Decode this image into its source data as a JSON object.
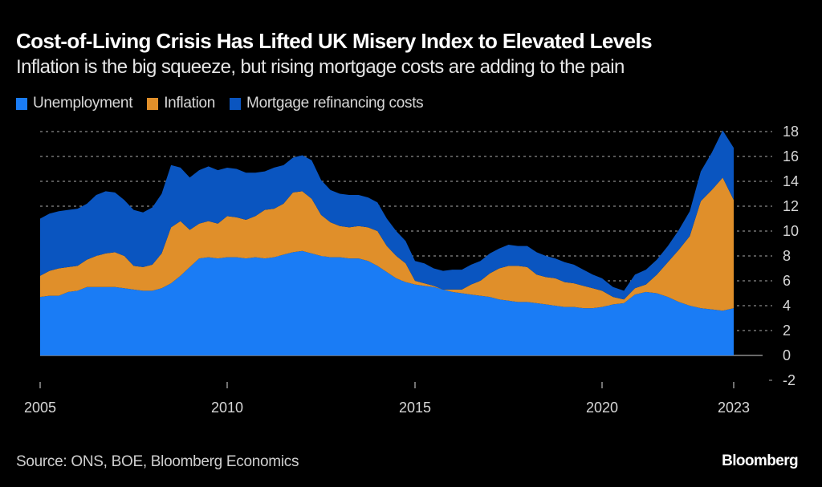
{
  "header": {
    "title": "Cost-of-Living Crisis Has Lifted UK Misery Index to Elevated Levels",
    "subtitle": "Inflation is the big squeeze, but rising mortgage costs are adding to the pain"
  },
  "legend": [
    {
      "label": "Unemployment",
      "color": "#1a7cf5"
    },
    {
      "label": "Inflation",
      "color": "#e08f2a"
    },
    {
      "label": "Mortgage refinancing costs",
      "color": "#0a55c0"
    }
  ],
  "footer": {
    "source": "Source: ONS, BOE, Bloomberg Economics",
    "brand": "Bloomberg"
  },
  "chart_data": {
    "type": "area",
    "stacked": true,
    "title": "Cost-of-Living Crisis Has Lifted UK Misery Index to Elevated Levels",
    "subtitle": "Inflation is the big squeeze, but rising mortgage costs are adding to the pain",
    "xlabel": "",
    "ylabel": "",
    "x_ticks": [
      "2005",
      "2010",
      "2015",
      "2020",
      "2023"
    ],
    "y_ticks": [
      "18",
      "16",
      "14",
      "12",
      "10",
      "8",
      "6",
      "4",
      "2",
      "0",
      "-2"
    ],
    "ylim": [
      -2,
      19
    ],
    "y_axis_side": "right",
    "grid": "horizontal dotted",
    "legend_position": "top-left",
    "x": [
      2005.0,
      2005.25,
      2005.5,
      2005.75,
      2006.0,
      2006.25,
      2006.5,
      2006.75,
      2007.0,
      2007.25,
      2007.5,
      2007.75,
      2008.0,
      2008.25,
      2008.5,
      2008.75,
      2009.0,
      2009.25,
      2009.5,
      2009.75,
      2010.0,
      2010.25,
      2010.5,
      2010.75,
      2011.0,
      2011.25,
      2011.5,
      2011.75,
      2012.0,
      2012.25,
      2012.5,
      2012.75,
      2013.0,
      2013.25,
      2013.5,
      2013.75,
      2014.0,
      2014.25,
      2014.5,
      2014.75,
      2015.0,
      2015.25,
      2015.5,
      2015.75,
      2016.0,
      2016.25,
      2016.5,
      2016.75,
      2017.0,
      2017.25,
      2017.5,
      2017.75,
      2018.0,
      2018.25,
      2018.5,
      2018.75,
      2019.0,
      2019.25,
      2019.5,
      2019.75,
      2020.0,
      2020.25,
      2020.5,
      2020.75,
      2021.0,
      2021.25,
      2021.5,
      2021.75,
      2022.0,
      2022.25,
      2022.5,
      2022.75,
      2023.0
    ],
    "series": [
      {
        "name": "Unemployment",
        "values": [
          4.7,
          4.8,
          4.8,
          5.1,
          5.2,
          5.5,
          5.5,
          5.5,
          5.5,
          5.4,
          5.3,
          5.2,
          5.2,
          5.4,
          5.8,
          6.4,
          7.1,
          7.8,
          7.9,
          7.8,
          7.9,
          7.9,
          7.8,
          7.9,
          7.8,
          7.9,
          8.1,
          8.3,
          8.4,
          8.2,
          8.0,
          7.9,
          7.9,
          7.8,
          7.8,
          7.6,
          7.2,
          6.7,
          6.2,
          5.9,
          5.7,
          5.6,
          5.5,
          5.3,
          5.1,
          5.0,
          4.9,
          4.8,
          4.7,
          4.5,
          4.4,
          4.3,
          4.3,
          4.2,
          4.1,
          4.0,
          3.9,
          3.9,
          3.8,
          3.8,
          3.9,
          4.1,
          4.2,
          4.9,
          5.1,
          5.0,
          4.7,
          4.3,
          4.0,
          3.8,
          3.7,
          3.6,
          3.8
        ]
      },
      {
        "name": "Inflation",
        "values": [
          1.7,
          2.0,
          2.2,
          2.0,
          2.0,
          2.2,
          2.5,
          2.7,
          2.8,
          2.6,
          1.9,
          1.9,
          2.1,
          2.8,
          4.5,
          4.4,
          3.0,
          2.8,
          2.9,
          2.8,
          3.3,
          3.2,
          3.1,
          3.3,
          3.9,
          3.9,
          4.1,
          4.8,
          4.8,
          4.4,
          3.3,
          2.8,
          2.5,
          2.5,
          2.6,
          2.7,
          2.8,
          2.1,
          1.8,
          1.5,
          0.3,
          0.2,
          0.1,
          0.0,
          0.2,
          0.3,
          0.8,
          1.2,
          1.9,
          2.5,
          2.8,
          2.9,
          2.8,
          2.3,
          2.2,
          2.2,
          2.0,
          1.9,
          1.8,
          1.6,
          1.3,
          0.6,
          0.3,
          0.5,
          0.6,
          1.5,
          2.8,
          4.2,
          5.6,
          8.6,
          9.6,
          10.7,
          8.7
        ]
      },
      {
        "name": "Mortgage refinancing costs",
        "values": [
          4.6,
          4.6,
          4.6,
          4.6,
          4.6,
          4.5,
          4.9,
          5.0,
          4.8,
          4.5,
          4.5,
          4.4,
          4.6,
          4.8,
          5.0,
          4.3,
          4.2,
          4.3,
          4.4,
          4.3,
          3.9,
          3.9,
          3.8,
          3.5,
          3.1,
          3.3,
          3.1,
          2.8,
          2.9,
          3.1,
          2.8,
          2.6,
          2.6,
          2.6,
          2.5,
          2.4,
          2.3,
          2.2,
          2.0,
          1.8,
          1.6,
          1.6,
          1.4,
          1.5,
          1.6,
          1.6,
          1.6,
          1.6,
          1.6,
          1.6,
          1.7,
          1.6,
          1.7,
          1.8,
          1.7,
          1.6,
          1.6,
          1.5,
          1.3,
          1.1,
          1.0,
          0.8,
          0.7,
          1.1,
          1.2,
          1.2,
          1.3,
          1.6,
          2.0,
          2.4,
          3.0,
          3.8,
          4.2
        ]
      }
    ]
  }
}
